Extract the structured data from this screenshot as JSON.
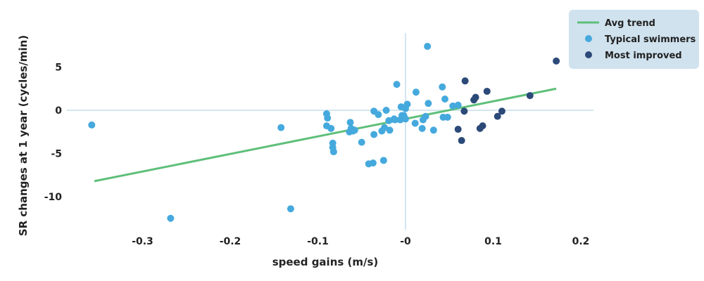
{
  "chart_data": {
    "type": "scatter",
    "title": "",
    "xlabel": "speed gains (m/s)",
    "ylabel": "SR changes at 1 year (cycles/min)",
    "xlim": [
      -0.36,
      0.21
    ],
    "ylim": [
      -13,
      8.5
    ],
    "x_ticks": [
      -0.3,
      -0.2,
      -0.1,
      0,
      0.1,
      0.2
    ],
    "x_tick_labels": [
      "-0.3",
      "-0.2",
      "-0.1",
      "-0",
      "0.1",
      "0.2"
    ],
    "y_ticks": [
      5,
      0,
      -5,
      -10
    ],
    "y_tick_labels": [
      "5",
      "0",
      "-5",
      "-10"
    ],
    "grid": false,
    "zero_lines": true,
    "legend_position": "top-right",
    "colors": {
      "trend": "#5fbf7a",
      "typical": "#45a9dd",
      "improved": "#2c4a78",
      "zero_line": "#d3e6f0",
      "legend_bg": "#cfe2ee"
    },
    "trend": {
      "name": "Avg trend",
      "x": [
        -0.355,
        0.172
      ],
      "y": [
        -8.2,
        2.5
      ]
    },
    "series": [
      {
        "name": "Typical swimmers",
        "x": [
          -0.358,
          -0.268,
          -0.142,
          -0.131,
          -0.09,
          -0.089,
          -0.09,
          -0.085,
          -0.083,
          -0.083,
          -0.082,
          -0.064,
          -0.063,
          -0.062,
          -0.06,
          -0.058,
          -0.05,
          -0.042,
          -0.037,
          -0.036,
          -0.036,
          -0.031,
          -0.027,
          -0.025,
          -0.024,
          -0.022,
          -0.019,
          -0.018,
          -0.013,
          -0.012,
          -0.01,
          -0.006,
          -0.005,
          -0.004,
          -0.002,
          0.0,
          0.0,
          0.002,
          0.011,
          0.012,
          0.019,
          0.02,
          0.023,
          0.025,
          0.026,
          0.032,
          0.042,
          0.043,
          0.045,
          0.048,
          0.054,
          0.06
        ],
        "y": [
          -1.7,
          -12.5,
          -2.0,
          -11.4,
          -0.4,
          -0.9,
          -1.8,
          -2.1,
          -3.8,
          -4.3,
          -4.8,
          -2.5,
          -1.4,
          -2.1,
          -2.4,
          -2.3,
          -3.7,
          -6.2,
          -6.1,
          -2.8,
          -0.1,
          -0.5,
          -2.4,
          -5.8,
          -2.0,
          0.0,
          -1.2,
          -2.3,
          -1.0,
          -1.1,
          3.0,
          -1.1,
          0.4,
          -0.6,
          -0.6,
          -1.0,
          0.2,
          0.7,
          -1.5,
          2.1,
          -2.1,
          -1.1,
          -0.7,
          7.4,
          0.8,
          -2.3,
          2.7,
          -0.8,
          1.3,
          -0.8,
          0.5,
          0.6
        ]
      },
      {
        "name": "Most improved",
        "x": [
          0.06,
          0.064,
          0.067,
          0.068,
          0.078,
          0.08,
          0.085,
          0.088,
          0.093,
          0.105,
          0.11,
          0.142,
          0.172
        ],
        "y": [
          -2.2,
          -3.5,
          -0.1,
          3.4,
          1.2,
          1.5,
          -2.1,
          -1.8,
          2.2,
          -0.7,
          -0.1,
          1.7,
          5.7
        ]
      }
    ]
  }
}
